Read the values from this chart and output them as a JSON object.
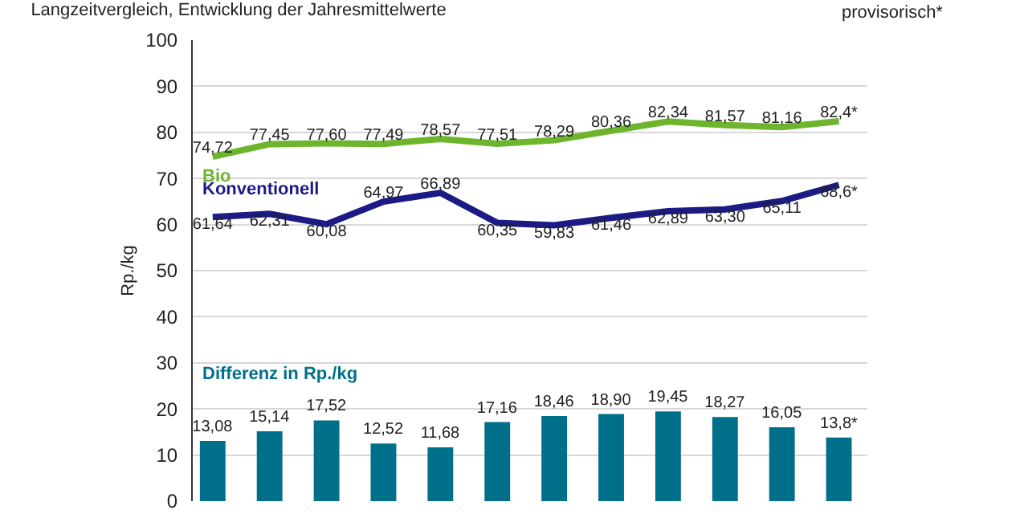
{
  "chart_data": {
    "type": "line",
    "title": "Langzeitvergleich, Entwicklung der Jahresmittelwerte",
    "ylabel": "Rp./kg",
    "annotations": [
      "provisorisch*"
    ],
    "categories": [
      null,
      null,
      null,
      null,
      null,
      null,
      null,
      null,
      null,
      null,
      null,
      null
    ],
    "series": [
      {
        "name": "Bio",
        "color": "#6cb52d",
        "values": [
          74.72,
          77.45,
          77.6,
          77.49,
          78.57,
          77.51,
          78.29,
          80.36,
          82.34,
          81.57,
          81.16,
          82.4
        ],
        "value_labels": [
          "74,72",
          "77,45",
          "77,60",
          "77,49",
          "78,57",
          "77,51",
          "78,29",
          "80,36",
          "82,34",
          "81,57",
          "81,16",
          "82,4*"
        ]
      },
      {
        "name": "Konventionell",
        "color": "#1c1a85",
        "values": [
          61.64,
          62.31,
          60.08,
          64.97,
          66.89,
          60.35,
          59.83,
          61.46,
          62.89,
          63.3,
          65.11,
          68.6
        ],
        "value_labels": [
          "61,64",
          "62,31",
          "60,08",
          "64,97",
          "66,89",
          "60,35",
          "59,83",
          "61,46",
          "62,89",
          "63,30",
          "65,11",
          "68,6*"
        ]
      },
      {
        "name": "Differenz in Rp./kg",
        "type": "bar",
        "color": "#00708a",
        "values": [
          13.08,
          15.14,
          17.52,
          12.52,
          11.68,
          17.16,
          18.46,
          18.9,
          19.45,
          18.27,
          16.05,
          13.8
        ],
        "value_labels": [
          "13,08",
          "15,14",
          "17,52",
          "12,52",
          "11,68",
          "17,16",
          "18,46",
          "18,90",
          "19,45",
          "18,27",
          "16,05",
          "13,8*"
        ]
      }
    ],
    "ylim": [
      0,
      100
    ],
    "yticks": [
      0,
      10,
      20,
      30,
      40,
      50,
      60,
      70,
      80,
      90,
      100
    ],
    "grid": "y",
    "legend": false,
    "tick_labels": "y",
    "marker": "none"
  }
}
